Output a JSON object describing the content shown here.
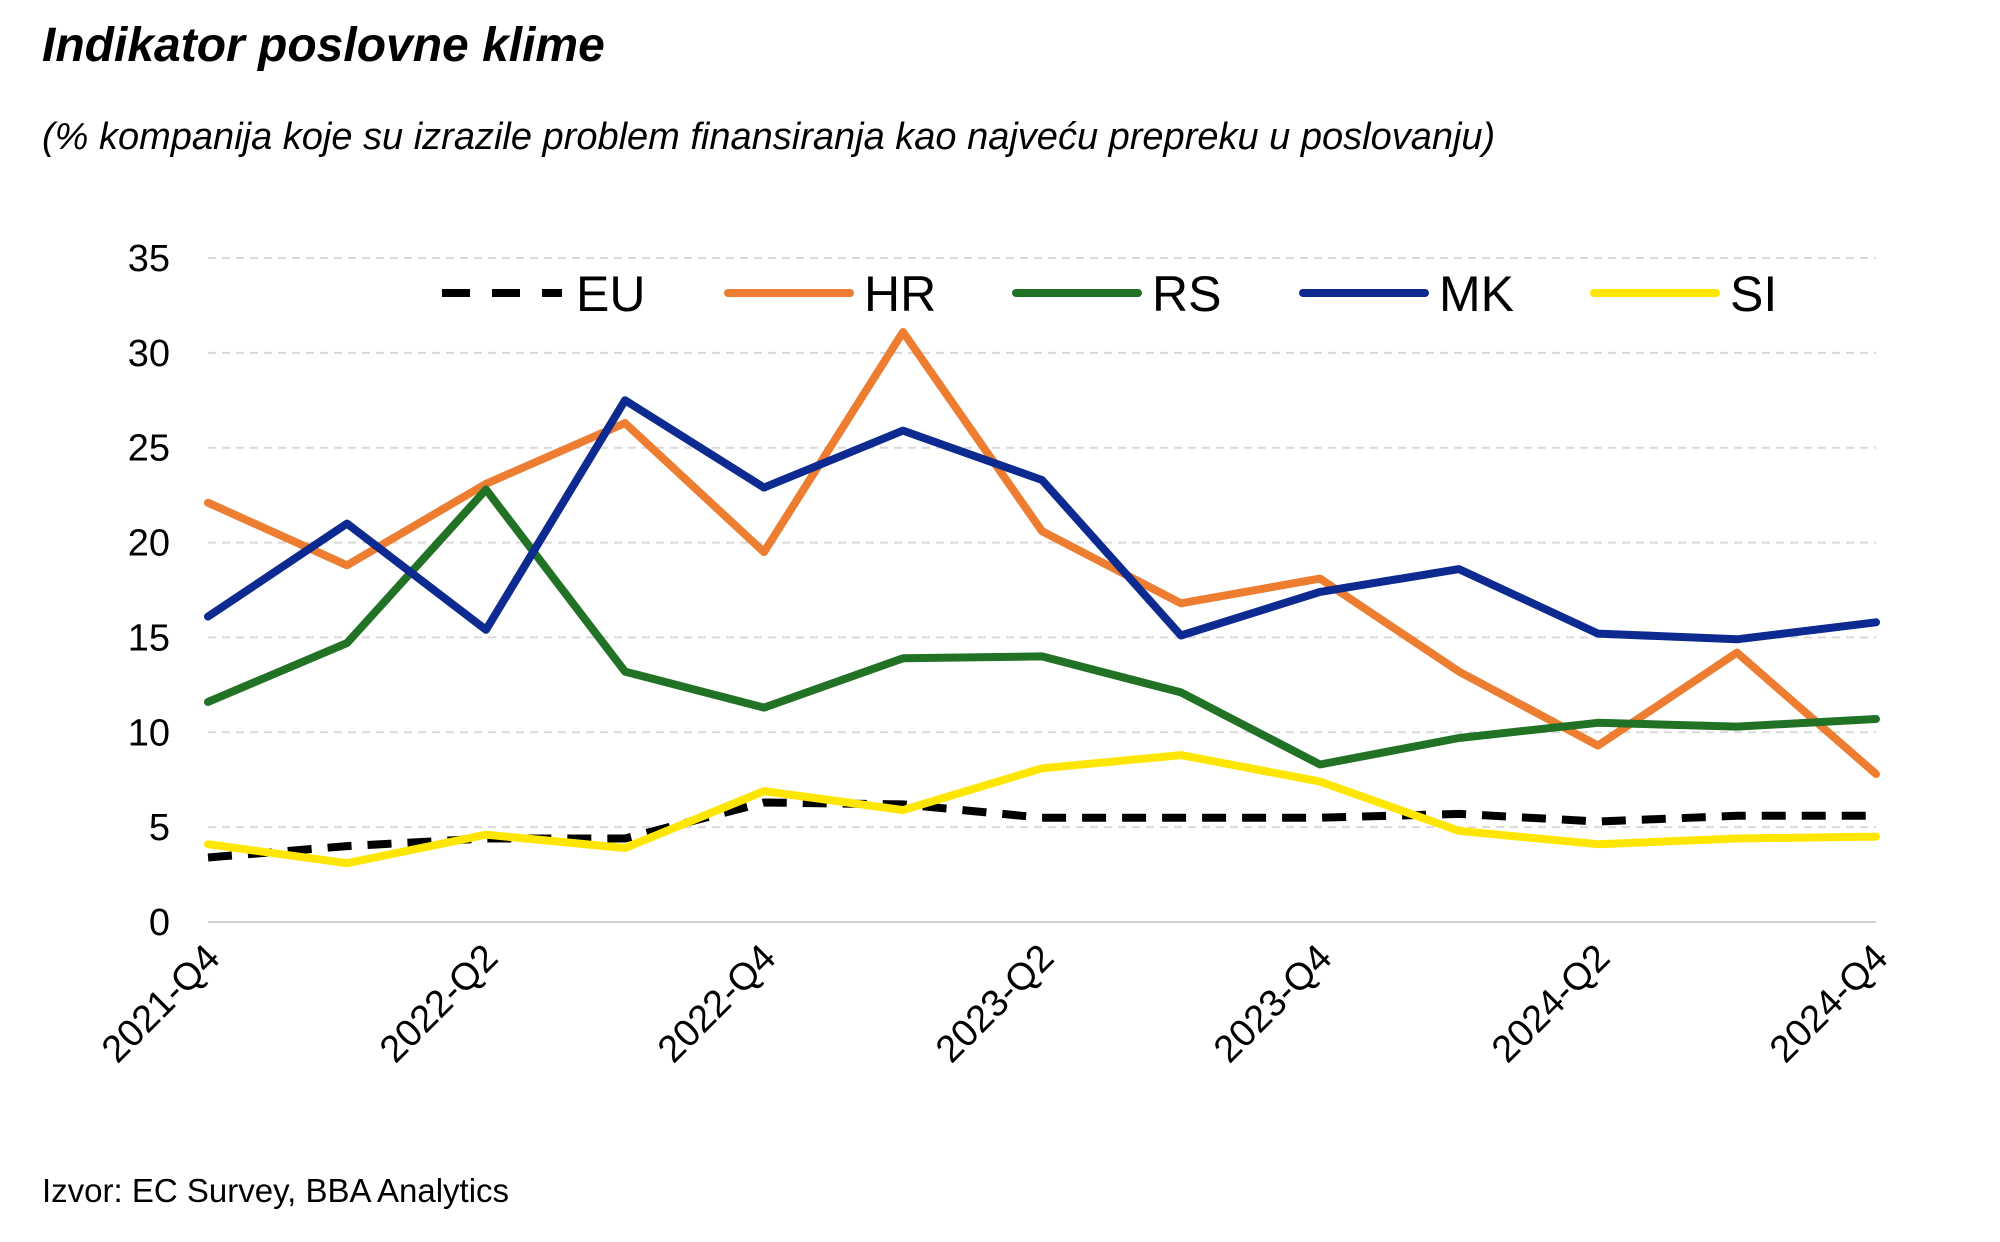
{
  "header": {
    "title": "Indikator poslovne klime",
    "subtitle": "(% kompanija koje su izrazile problem finansiranja kao najveću prepreku u poslovanju)"
  },
  "footer": {
    "source": "Izvor: EC Survey, BBA Analytics"
  },
  "chart_data": {
    "type": "line",
    "x": [
      "2021-Q4",
      "2022-Q1",
      "2022-Q2",
      "2022-Q3",
      "2022-Q4",
      "2023-Q1",
      "2023-Q2",
      "2023-Q3",
      "2023-Q4",
      "2024-Q1",
      "2024-Q2",
      "2024-Q3",
      "2024-Q4"
    ],
    "x_tick_labels": [
      "2021-Q4",
      "2022-Q2",
      "2022-Q4",
      "2023-Q2",
      "2023-Q4",
      "2024-Q2",
      "2024-Q4"
    ],
    "ylim": [
      0,
      35
    ],
    "y_ticks": [
      0,
      5,
      10,
      15,
      20,
      25,
      30,
      35
    ],
    "grid": true,
    "legend_position": "top",
    "series": [
      {
        "name": "EU",
        "color": "#000000",
        "dash": true,
        "values": [
          3.4,
          4.0,
          4.4,
          4.4,
          6.3,
          6.2,
          5.5,
          5.5,
          5.5,
          5.7,
          5.3,
          5.6,
          5.6
        ]
      },
      {
        "name": "HR",
        "color": "#ED7D31",
        "values": [
          22.1,
          18.8,
          23.1,
          26.3,
          19.5,
          31.1,
          20.6,
          16.8,
          18.1,
          13.2,
          9.3,
          14.2,
          7.8
        ]
      },
      {
        "name": "RS",
        "color": "#217225",
        "values": [
          11.6,
          14.7,
          22.8,
          13.2,
          11.3,
          13.9,
          14.0,
          12.1,
          8.3,
          9.7,
          10.5,
          10.3,
          10.7
        ]
      },
      {
        "name": "MK",
        "color": "#0D2A91",
        "values": [
          16.1,
          21.0,
          15.4,
          27.5,
          22.9,
          25.9,
          23.3,
          15.1,
          17.4,
          18.6,
          15.2,
          14.9,
          15.8
        ]
      },
      {
        "name": "SI",
        "color": "#FFE600",
        "values": [
          4.1,
          3.1,
          4.6,
          3.9,
          6.9,
          5.9,
          8.1,
          8.8,
          7.4,
          4.8,
          4.1,
          4.4,
          4.5
        ]
      }
    ]
  }
}
